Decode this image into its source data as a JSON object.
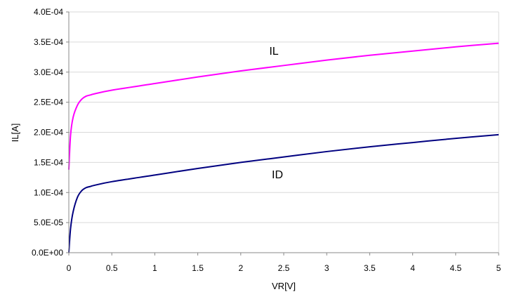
{
  "chart_data": {
    "type": "line",
    "xlabel": "VR[V]",
    "ylabel": "IL[A]",
    "xlim": [
      0,
      5
    ],
    "ylim": [
      0,
      0.0004
    ],
    "x_ticks": [
      "0",
      "0.5",
      "1",
      "1.5",
      "2",
      "2.5",
      "3",
      "3.5",
      "4",
      "4.5",
      "5"
    ],
    "y_ticks": [
      "0.0E+00",
      "5.0E-05",
      "1.0E-04",
      "1.5E-04",
      "2.0E-04",
      "2.5E-04",
      "3.0E-04",
      "3.5E-04",
      "4.0E-04"
    ],
    "grid": "horizontal",
    "series": [
      {
        "name": "IL",
        "color": "#ff00ff",
        "x": [
          0,
          0.02,
          0.05,
          0.1,
          0.15,
          0.2,
          0.25,
          0.3,
          0.5,
          1,
          1.5,
          2,
          2.5,
          3,
          3.5,
          4,
          4.5,
          5
        ],
        "y": [
          0.000138,
          0.000195,
          0.000225,
          0.000245,
          0.000255,
          0.00026,
          0.000262,
          0.000264,
          0.00027,
          0.000281,
          0.000292,
          0.000302,
          0.000311,
          0.00032,
          0.000328,
          0.000335,
          0.000342,
          0.000348
        ]
      },
      {
        "name": "ID",
        "color": "#000080",
        "x": [
          0,
          0.02,
          0.05,
          0.1,
          0.15,
          0.2,
          0.25,
          0.3,
          0.5,
          1,
          1.5,
          2,
          2.5,
          3,
          3.5,
          4,
          4.5,
          5
        ],
        "y": [
          0,
          4e-05,
          6.8e-05,
          9.2e-05,
          0.000103,
          0.000108,
          0.00011,
          0.000112,
          0.000118,
          0.000129,
          0.00014,
          0.00015,
          0.000159,
          0.000168,
          0.000176,
          0.000183,
          0.00019,
          0.000196
        ]
      }
    ]
  }
}
